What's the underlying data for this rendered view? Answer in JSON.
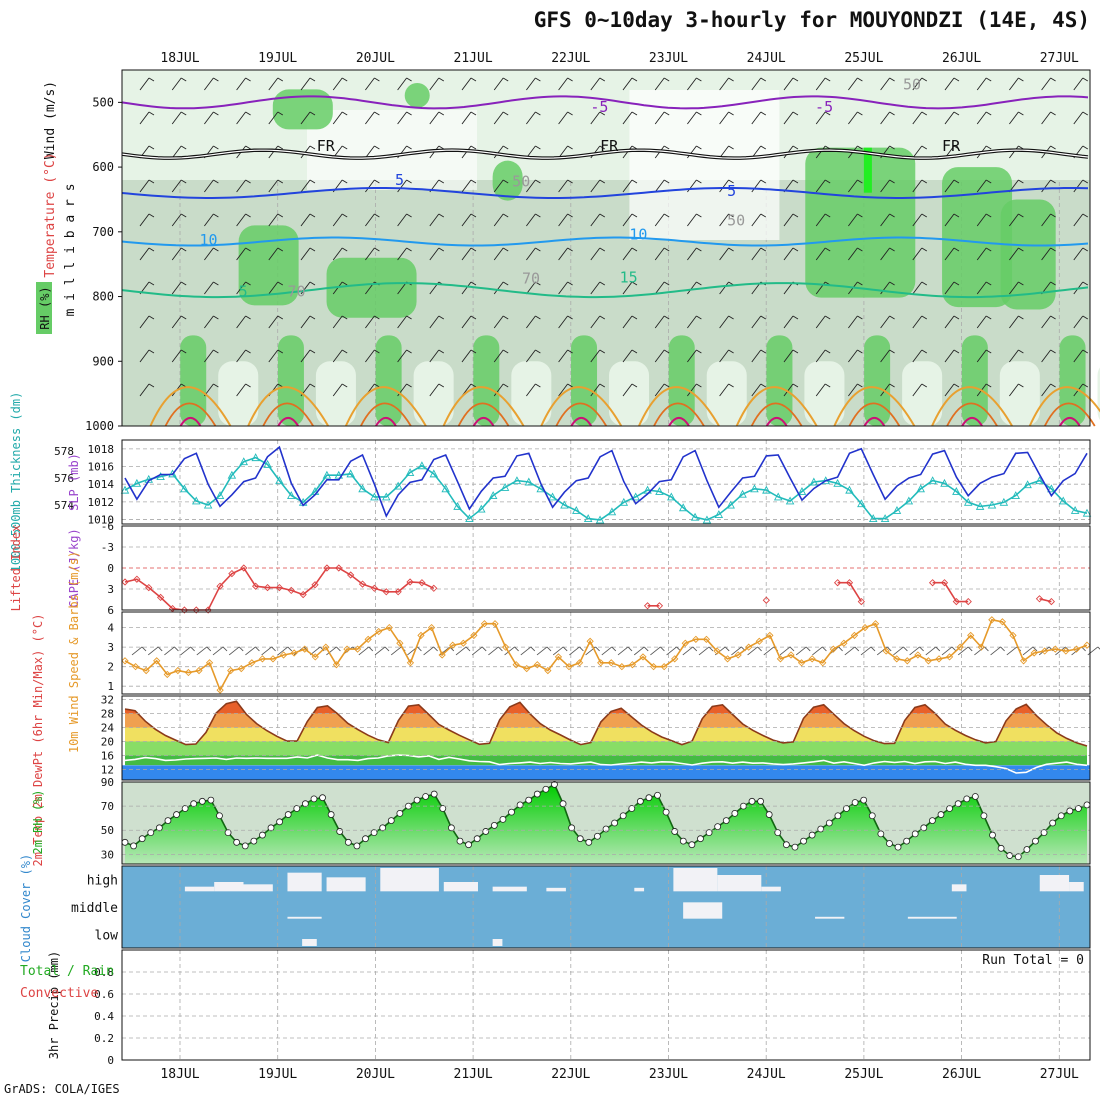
{
  "title": "GFS 0~10day 3-hourly for MOUYONDZI (14E, 4S)",
  "credit": "GrADS: COLA/IGES",
  "colors": {
    "grid": "#aaaaaa",
    "rh_light": "#e6f3e6",
    "rh_mid": "#c9dcc9",
    "rh_green": "#66cc66",
    "slp": "#2233cc",
    "thickness": "#22bbbb",
    "li": "#dd4444",
    "wind10": "#e69a2a",
    "temp_warm": "#e8702a",
    "temp_yellow": "#f0e060",
    "temp_green": "#44bb44",
    "dewpt": "#3388ee",
    "rh2m": "#22cc22",
    "cloud": "#6baed6",
    "cloud_clear": "#f2f2f6"
  },
  "chart_data": [
    {
      "type": "heatmap",
      "name": "upper-air cross-section",
      "ylabel": "m i l l i b a r s",
      "ylabel_extra": [
        "Temperature (°C)",
        "Wind (m/s)",
        "RH (%)"
      ],
      "y_ticks": [
        500,
        600,
        700,
        800,
        900,
        1000
      ],
      "ylim": [
        1000,
        450
      ],
      "x_dates": [
        "18JUL",
        "19JUL",
        "20JUL",
        "21JUL",
        "22JUL",
        "23JUL",
        "24JUL",
        "25JUL",
        "26JUL",
        "27JUL"
      ],
      "contour_labels": [
        {
          "text": "-5",
          "day": 4.2,
          "p": 515,
          "color": "#8822bb"
        },
        {
          "text": "-5",
          "day": 6.5,
          "p": 515,
          "color": "#8822bb"
        },
        {
          "text": "FR",
          "day": 1.4,
          "p": 575,
          "color": "#111111"
        },
        {
          "text": "FR",
          "day": 4.3,
          "p": 575,
          "color": "#111111"
        },
        {
          "text": "FR",
          "day": 7.8,
          "p": 575,
          "color": "#111111"
        },
        {
          "text": "5",
          "day": 2.2,
          "p": 628,
          "color": "#2244dd"
        },
        {
          "text": "5",
          "day": 5.6,
          "p": 645,
          "color": "#2244dd"
        },
        {
          "text": "10",
          "day": 0.2,
          "p": 720,
          "color": "#2299ee"
        },
        {
          "text": "10",
          "day": 4.6,
          "p": 712,
          "color": "#2299ee"
        },
        {
          "text": "5",
          "day": 0.6,
          "p": 800,
          "color": "#22bb88"
        },
        {
          "text": "15",
          "day": 4.5,
          "p": 778,
          "color": "#22bb88"
        },
        {
          "text": "50",
          "day": 7.4,
          "p": 480,
          "color": "#999999"
        },
        {
          "text": "50",
          "day": 3.4,
          "p": 630,
          "color": "#999999"
        },
        {
          "text": "50",
          "day": 5.6,
          "p": 690,
          "color": "#999999"
        },
        {
          "text": "70",
          "day": 1.1,
          "p": 800,
          "color": "#999999"
        },
        {
          "text": "70",
          "day": 3.5,
          "p": 780,
          "color": "#999999"
        }
      ]
    },
    {
      "type": "line",
      "name": "sea-level pressure and thickness",
      "ylabel": "SLP (mb)",
      "ylabel2": "1000-500mb Thickness (dm)",
      "y_ticks": [
        1010,
        1012,
        1014,
        1016,
        1018
      ],
      "ylim": [
        1009.5,
        1019
      ],
      "y2_ticks": [
        574,
        576,
        578
      ],
      "y2lim": [
        572.6,
        578.8
      ],
      "series": [
        {
          "name": "SLP",
          "values": [
            1014.7,
            1012.3,
            1014.4,
            1015.1,
            1015.1,
            1016.9,
            1017.5,
            1014.0,
            1011.5,
            1012.8,
            1014.3,
            1014.7,
            1017.1,
            1018.2,
            1014.1,
            1011.6,
            1012.8,
            1014.5,
            1014.5,
            1016.6,
            1017.3,
            1014.0,
            1010.4,
            1012.8,
            1014.2,
            1014.5,
            1016.8,
            1017.3,
            1014.3,
            1011.2,
            1013.2,
            1014.7,
            1014.9,
            1017.2,
            1017.5,
            1014.1,
            1011.4,
            1013.1,
            1014.4,
            1014.7,
            1017.1,
            1017.8,
            1014.3,
            1011.8,
            1012.9,
            1014.3,
            1014.5,
            1017.1,
            1017.8,
            1014.4,
            1011.4,
            1013.1,
            1014.7,
            1014.9,
            1017.2,
            1017.3,
            1014.7,
            1012.2,
            1013.5,
            1014.4,
            1014.8,
            1017.5,
            1018.0,
            1015.1,
            1012.3,
            1013.8,
            1014.7,
            1015.1,
            1017.4,
            1017.8,
            1014.8,
            1012.7,
            1014.1,
            1014.8,
            1015.2,
            1017.5,
            1017.6,
            1015.1,
            1012.7,
            1014.4,
            1015.2,
            1017.5
          ]
        },
        {
          "name": "Thickness",
          "values": [
            575.1,
            575.6,
            575.9,
            576.1,
            576.3,
            575.2,
            574.3,
            574.0,
            574.7,
            576.2,
            577.2,
            577.5,
            577.0,
            575.8,
            574.7,
            574.2,
            575.0,
            576.2,
            576.2,
            576.3,
            575.2,
            574.6,
            574.6,
            575.4,
            576.4,
            576.9,
            576.3,
            575.2,
            573.9,
            573.0,
            573.7,
            574.7,
            575.3,
            575.8,
            575.7,
            575.2,
            574.6,
            574.0,
            573.6,
            573.0,
            572.9,
            573.5,
            574.2,
            574.6,
            575.1,
            575.0,
            574.6,
            573.8,
            573.1,
            572.9,
            573.3,
            574.0,
            574.8,
            575.2,
            575.1,
            574.6,
            574.3,
            575.0,
            575.7,
            575.8,
            575.6,
            575.1,
            574.1,
            573.0,
            573.0,
            573.6,
            574.3,
            575.2,
            575.8,
            575.6,
            575.0,
            574.2,
            573.9,
            574.0,
            574.2,
            574.7,
            575.5,
            575.8,
            575.2,
            574.3,
            573.6,
            573.4
          ]
        }
      ]
    },
    {
      "type": "line",
      "name": "stability indices",
      "ylabel": "Lifted Index",
      "ylabel2": "CAPE (J/kg)",
      "y_ticks": [
        -6,
        -3,
        0,
        3,
        6
      ],
      "y_tick_labels": [
        "-6",
        "-3",
        "0",
        "3",
        "6"
      ],
      "ylim": [
        -6,
        6
      ],
      "series": [
        {
          "name": "Lifted Index",
          "values": [
            2.0,
            1.6,
            2.8,
            4.2,
            5.8,
            6.0,
            6.0,
            6.0,
            2.6,
            0.8,
            0.0,
            2.6,
            2.8,
            2.8,
            3.2,
            3.8,
            2.4,
            0.0,
            0.0,
            1.0,
            2.3,
            2.9,
            3.4,
            3.4,
            2.0,
            2.1,
            2.9,
            null,
            null,
            null,
            null,
            null,
            null,
            null,
            null,
            null,
            null,
            null,
            null,
            null,
            null,
            null,
            null,
            null,
            5.4,
            5.4,
            null,
            null,
            null,
            null,
            null,
            null,
            null,
            null,
            4.6,
            null,
            null,
            null,
            null,
            null,
            2.1,
            2.1,
            4.8,
            null,
            null,
            null,
            null,
            null,
            2.1,
            2.1,
            4.8,
            4.8,
            null,
            null,
            null,
            null,
            null,
            4.4,
            4.8,
            null,
            null,
            null
          ]
        }
      ]
    },
    {
      "type": "line",
      "name": "10m wind",
      "ylabel": "10m Wind Speed & Barbs (m/s)",
      "y_ticks": [
        1,
        2,
        3,
        4
      ],
      "ylim": [
        0.6,
        4.8
      ],
      "series": [
        {
          "name": "Wind speed",
          "values": [
            2.3,
            2.0,
            1.8,
            2.3,
            1.6,
            1.8,
            1.7,
            1.8,
            2.2,
            0.8,
            1.8,
            1.9,
            2.2,
            2.4,
            2.4,
            2.6,
            2.7,
            2.9,
            2.5,
            3.0,
            2.1,
            2.9,
            2.9,
            3.4,
            3.8,
            4.0,
            3.2,
            2.2,
            3.6,
            4.0,
            2.6,
            3.1,
            3.2,
            3.6,
            4.2,
            4.2,
            3.0,
            2.1,
            1.9,
            2.1,
            1.8,
            2.5,
            2.0,
            2.2,
            3.3,
            2.2,
            2.2,
            2.0,
            2.1,
            2.5,
            2.0,
            2.0,
            2.4,
            3.2,
            3.4,
            3.4,
            2.8,
            2.4,
            2.6,
            3.0,
            3.3,
            3.6,
            2.4,
            2.6,
            2.2,
            2.4,
            2.2,
            2.9,
            3.2,
            3.6,
            4.0,
            4.2,
            2.8,
            2.4,
            2.3,
            2.6,
            2.3,
            2.4,
            2.5,
            3.0,
            3.6,
            3.0,
            4.4,
            4.3,
            3.6,
            2.3,
            2.7,
            2.8,
            2.9,
            2.8,
            2.9,
            3.1
          ]
        }
      ]
    },
    {
      "type": "area",
      "name": "2m temperature and dew point",
      "ylabel": "2m Temp 2m DewPt (6hr Min/Max) (°C)",
      "y_ticks": [
        12,
        16,
        20,
        24,
        28,
        32
      ],
      "ylim": [
        9,
        33
      ],
      "series": [
        {
          "name": "Temperature",
          "values": [
            29.3,
            28.8,
            25.8,
            23.5,
            21.7,
            20.4,
            19.1,
            19.3,
            22.6,
            28.1,
            30.8,
            31.5,
            27.7,
            25.1,
            23.1,
            21.5,
            20.1,
            20.1,
            25.7,
            29.7,
            30.2,
            27.9,
            25.2,
            23.4,
            21.8,
            20.5,
            19.7,
            26.0,
            30.1,
            30.5,
            27.7,
            24.9,
            23.3,
            21.8,
            20.5,
            19.2,
            19.5,
            26.2,
            29.9,
            31.2,
            27.9,
            25.1,
            23.3,
            21.9,
            20.4,
            19.1,
            19.7,
            25.6,
            28.6,
            29.5,
            27.1,
            24.7,
            22.8,
            21.3,
            20.2,
            19.1,
            20.1,
            26.5,
            30.0,
            30.5,
            27.7,
            25.0,
            23.2,
            21.7,
            20.4,
            19.6,
            19.9,
            26.6,
            29.8,
            30.5,
            27.8,
            25.1,
            23.1,
            21.5,
            20.2,
            19.4,
            19.5,
            26.0,
            29.7,
            30.5,
            28.0,
            25.0,
            23.2,
            21.7,
            20.5,
            19.6,
            20.0,
            25.9,
            29.3,
            30.6,
            27.4,
            24.8,
            22.5,
            20.9,
            19.6,
            18.7
          ]
        },
        {
          "name": "Dew point",
          "values": [
            14.6,
            14.9,
            15.4,
            15.1,
            14.6,
            14.7,
            15.0,
            15.1,
            15.2,
            15.3,
            14.9,
            15.3,
            15.2,
            15.3,
            15.2,
            15.2,
            15.2,
            15.6,
            15.3,
            16.1,
            15.3,
            14.8,
            14.8,
            14.6,
            15.1,
            15.3,
            15.9,
            16.1,
            16.0,
            15.6,
            15.9,
            14.9,
            15.5,
            15.0,
            14.5,
            14.3,
            14.2,
            13.4,
            13.7,
            13.9,
            14.1,
            13.7,
            14.0,
            13.7,
            13.6,
            13.9,
            14.1,
            13.4,
            13.3,
            13.6,
            13.8,
            14.1,
            13.9,
            14.2,
            14.1,
            13.7,
            13.3,
            13.8,
            14.1,
            14.2,
            13.8,
            14.1,
            13.8,
            13.9,
            13.6,
            13.4,
            13.6,
            13.9,
            14.2,
            14.6,
            13.8,
            14.2,
            13.7,
            13.2,
            13.9,
            14.3,
            14.0,
            14.3,
            13.7,
            14.2,
            14.3,
            13.7,
            14.1,
            13.5,
            13.2,
            13.2,
            12.8,
            12.3,
            11.0,
            11.2,
            12.6,
            13.5,
            13.8,
            14.1,
            13.5,
            13.2
          ]
        }
      ]
    },
    {
      "type": "area",
      "name": "2m relative humidity",
      "ylabel": "2m RH (%)",
      "y_ticks": [
        30,
        50,
        70,
        90
      ],
      "ylim": [
        22,
        90
      ],
      "series": [
        {
          "name": "2m RH",
          "values": [
            40,
            37,
            43,
            48,
            52,
            58,
            63,
            68,
            72,
            74,
            75,
            62,
            48,
            40,
            37,
            41,
            46,
            52,
            57,
            63,
            68,
            72,
            76,
            77,
            63,
            49,
            40,
            37,
            43,
            48,
            52,
            58,
            64,
            70,
            75,
            78,
            80,
            68,
            52,
            41,
            38,
            43,
            49,
            54,
            59,
            65,
            71,
            75,
            80,
            84,
            88,
            72,
            52,
            43,
            40,
            45,
            51,
            56,
            62,
            68,
            74,
            77,
            79,
            65,
            49,
            41,
            38,
            43,
            48,
            53,
            58,
            64,
            70,
            74,
            74,
            63,
            48,
            38,
            36,
            41,
            46,
            51,
            56,
            62,
            68,
            73,
            75,
            62,
            47,
            39,
            36,
            41,
            47,
            52,
            58,
            63,
            68,
            72,
            76,
            78,
            62,
            46,
            35,
            29,
            28,
            34,
            41,
            48,
            56,
            62,
            66,
            68,
            71
          ]
        }
      ]
    },
    {
      "type": "bar",
      "name": "cloud cover",
      "ylabel": "Cloud Cover (%)",
      "levels": [
        "high",
        "middle",
        "low"
      ],
      "segments": [
        {
          "level": "high",
          "from": 0.05,
          "to": 0.35,
          "value": 20
        },
        {
          "level": "high",
          "from": 0.35,
          "to": 0.65,
          "value": 40
        },
        {
          "level": "high",
          "from": 0.65,
          "to": 0.95,
          "value": 30
        },
        {
          "level": "high",
          "from": 1.1,
          "to": 1.45,
          "value": 80
        },
        {
          "level": "high",
          "from": 1.5,
          "to": 1.9,
          "value": 60
        },
        {
          "level": "high",
          "from": 2.05,
          "to": 2.65,
          "value": 100
        },
        {
          "level": "high",
          "from": 2.7,
          "to": 3.05,
          "value": 40
        },
        {
          "level": "high",
          "from": 3.2,
          "to": 3.55,
          "value": 20
        },
        {
          "level": "high",
          "from": 3.75,
          "to": 3.95,
          "value": 15
        },
        {
          "level": "high",
          "from": 4.65,
          "to": 4.75,
          "value": 15
        },
        {
          "level": "high",
          "from": 5.05,
          "to": 5.5,
          "value": 100
        },
        {
          "level": "high",
          "from": 5.5,
          "to": 5.95,
          "value": 70
        },
        {
          "level": "high",
          "from": 5.95,
          "to": 6.15,
          "value": 20
        },
        {
          "level": "high",
          "from": 7.9,
          "to": 8.05,
          "value": 30
        },
        {
          "level": "high",
          "from": 8.8,
          "to": 9.1,
          "value": 70
        },
        {
          "level": "high",
          "from": 9.1,
          "to": 9.25,
          "value": 40
        },
        {
          "level": "middle",
          "from": 1.1,
          "to": 1.45,
          "value": 8
        },
        {
          "level": "middle",
          "from": 5.15,
          "to": 5.55,
          "value": 70
        },
        {
          "level": "middle",
          "from": 6.5,
          "to": 6.8,
          "value": 8
        },
        {
          "level": "middle",
          "from": 7.45,
          "to": 7.95,
          "value": 8
        },
        {
          "level": "low",
          "from": 1.25,
          "to": 1.4,
          "value": 30
        },
        {
          "level": "low",
          "from": 3.2,
          "to": 3.3,
          "value": 30
        }
      ]
    },
    {
      "type": "bar",
      "name": "3hr precipitation",
      "ylabel": "3hr Precip (mm)",
      "legend": [
        "Total / Rain",
        "Convective"
      ],
      "annotation": "Run Total = 0",
      "y_ticks": [
        0,
        0.2,
        0.4,
        0.6,
        0.8
      ],
      "y_tick_labels": [
        "0",
        "0.2",
        "0.4",
        "0.6",
        "0.8"
      ],
      "ylim": [
        0,
        1.0
      ],
      "values": []
    }
  ]
}
